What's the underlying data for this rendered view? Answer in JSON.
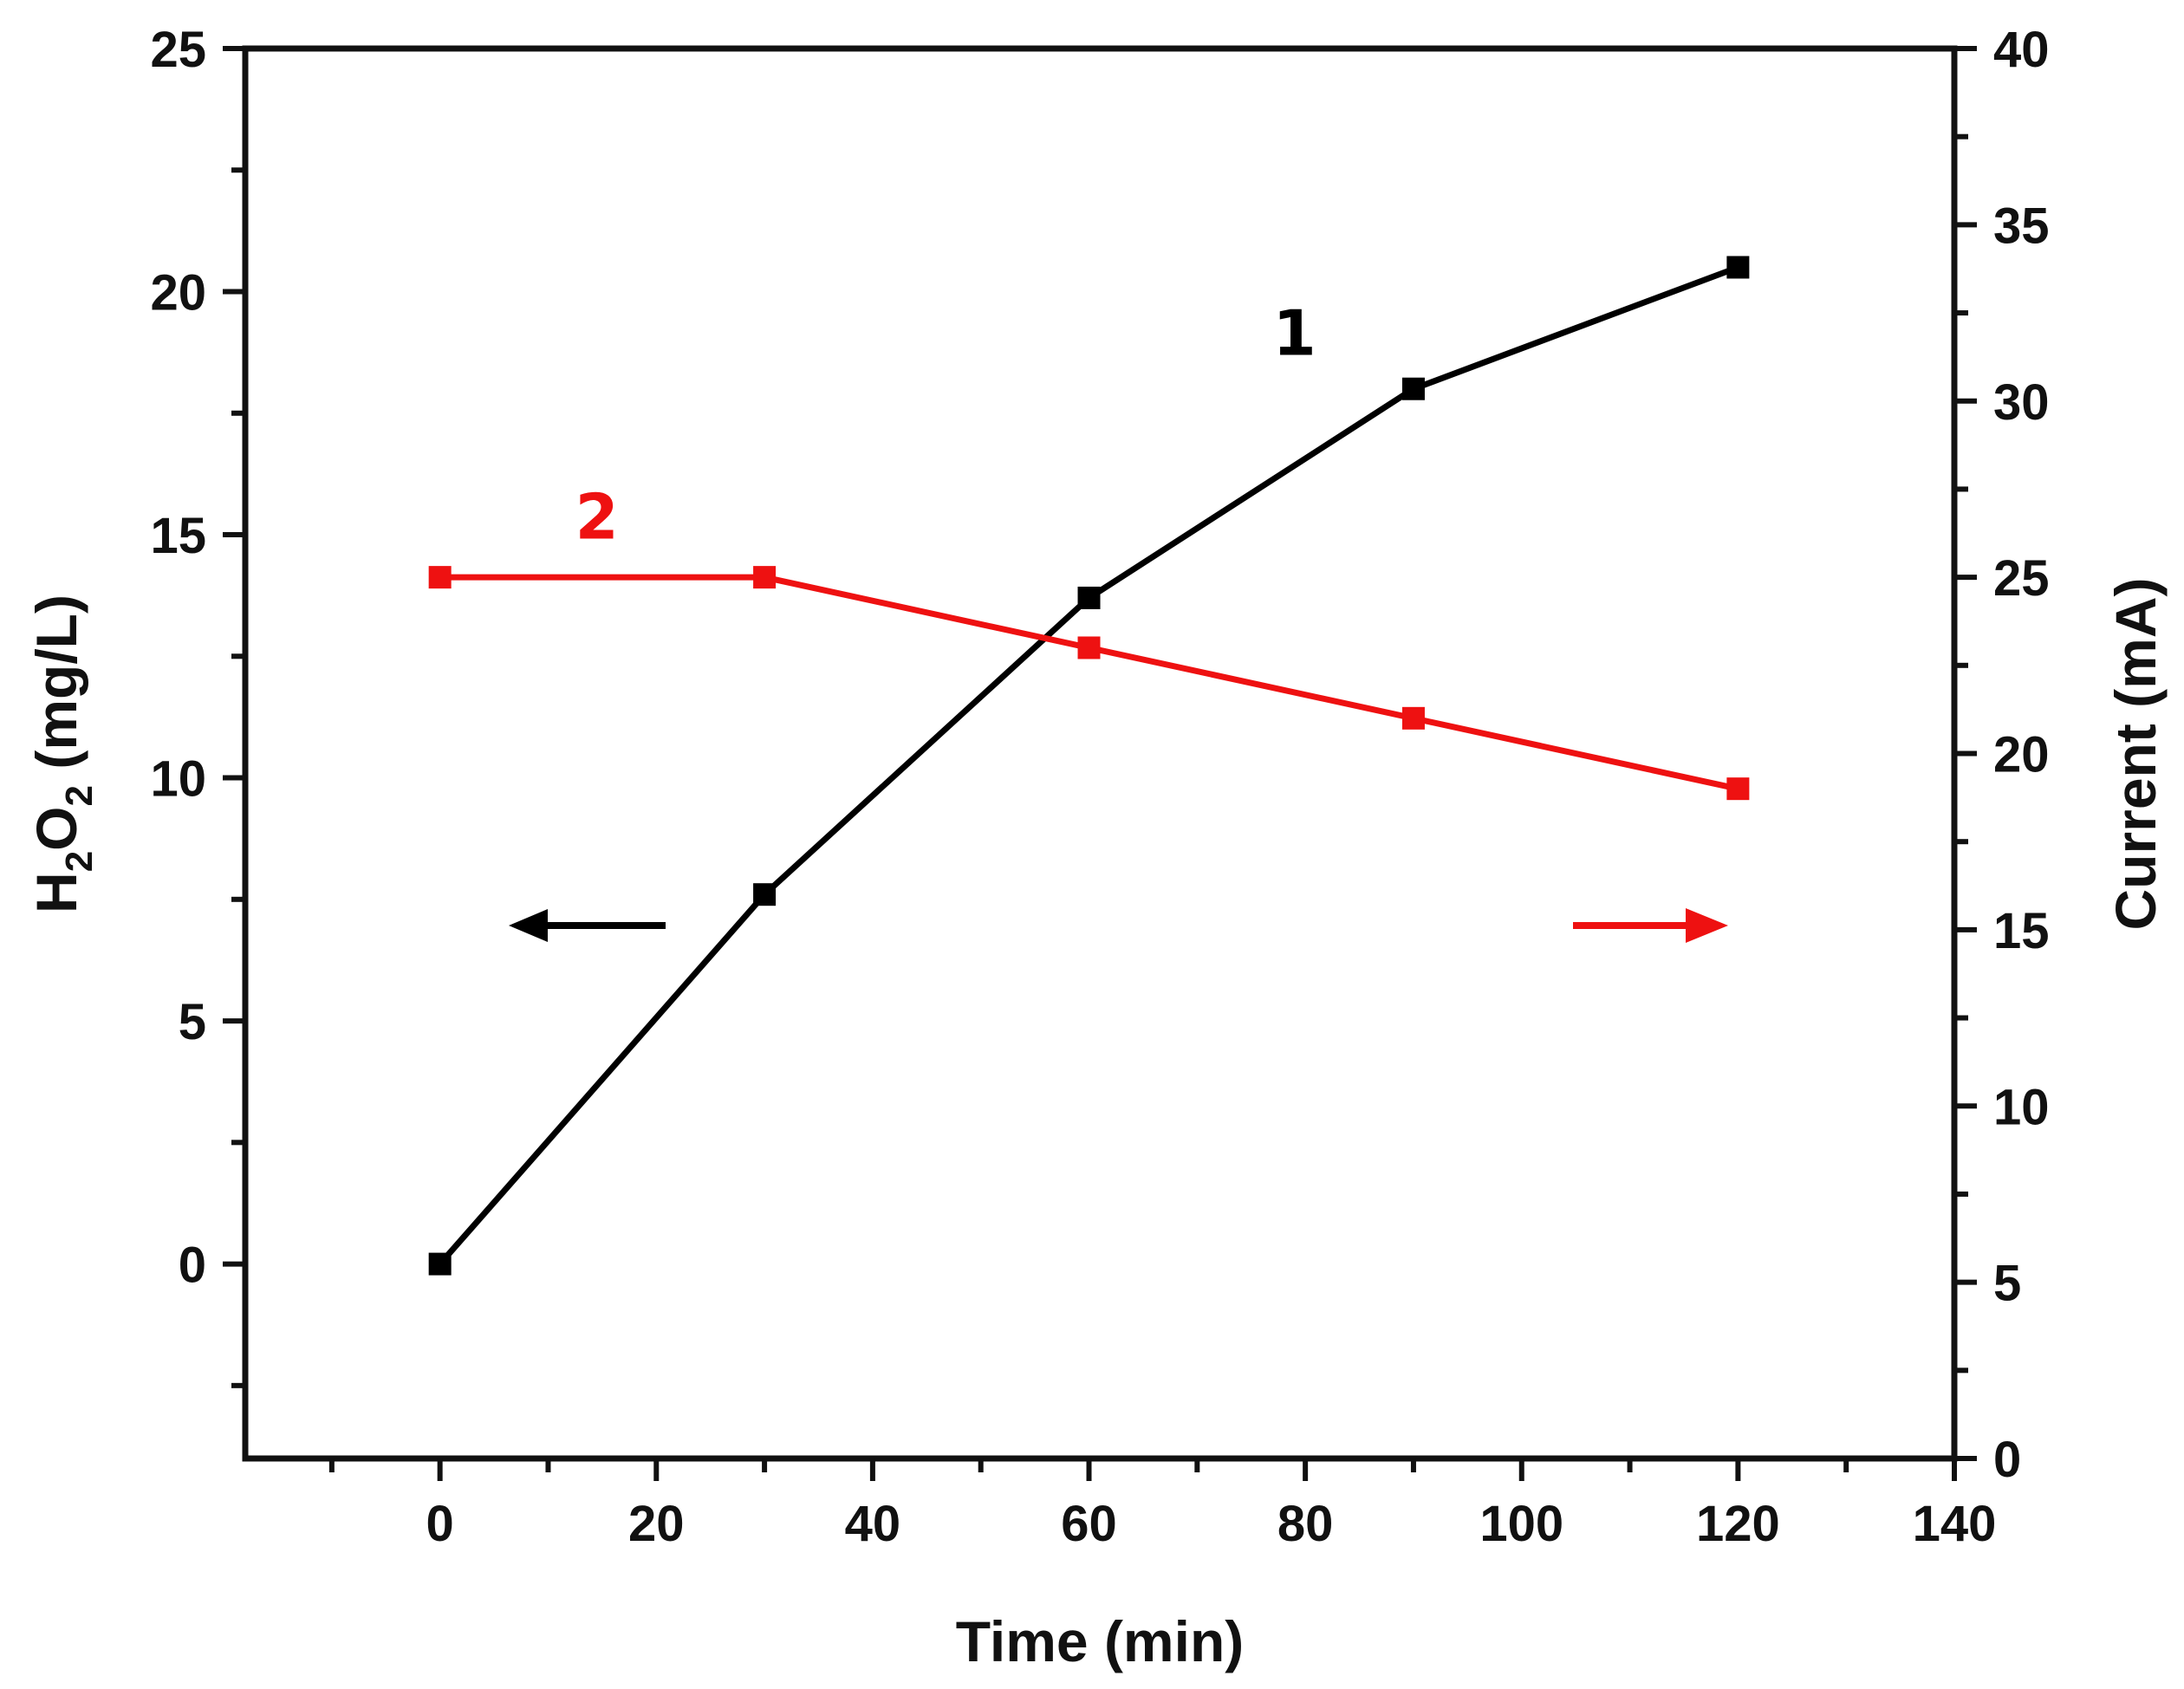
{
  "chart_data": {
    "type": "line",
    "title": "",
    "xlabel": "Time (min)",
    "ylabel_left": {
      "prefix": "H",
      "sub1": "2",
      "mid": "O",
      "sub2": "2",
      "suffix": " (mg/L)"
    },
    "ylabel_right": "Current (mA)",
    "xlim": [
      -18,
      140
    ],
    "ylim_left": [
      -4,
      25
    ],
    "ylim_right": [
      0,
      40
    ],
    "x_ticks": [
      0,
      20,
      40,
      60,
      80,
      100,
      120,
      140
    ],
    "y_left_ticks": [
      0,
      5,
      10,
      15,
      20,
      25
    ],
    "y_right_ticks": [
      0,
      5,
      10,
      15,
      20,
      25,
      30,
      35,
      40
    ],
    "grid": false,
    "series": [
      {
        "name": "1",
        "axis": "left",
        "color": "#000000",
        "x": [
          0,
          30,
          60,
          90,
          120
        ],
        "values": [
          0,
          7.6,
          13.7,
          18.0,
          20.5
        ]
      },
      {
        "name": "2",
        "axis": "right",
        "color": "#ee1111",
        "x": [
          0,
          30,
          60,
          90,
          120
        ],
        "values": [
          25,
          25,
          23,
          21,
          19
        ]
      }
    ],
    "annotations": [
      {
        "type": "arrow",
        "direction": "left",
        "color": "#000000",
        "meaning": "series 1 uses left axis"
      },
      {
        "type": "arrow",
        "direction": "right",
        "color": "#ee1111",
        "meaning": "series 2 uses right axis"
      }
    ]
  }
}
